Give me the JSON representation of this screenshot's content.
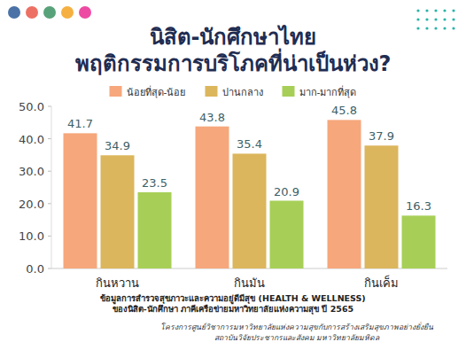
{
  "chart_data": {
    "type": "bar",
    "title": "นิสิต-นักศึกษาไทย",
    "subtitle": "พฤติกรรมการบริโภคที่น่าเป็นห่วง?",
    "categories": [
      "กินหวาน",
      "กินมัน",
      "กินเค็ม"
    ],
    "series": [
      {
        "name": "น้อยที่สุด-น้อย",
        "color": "#f6a77c",
        "values": [
          41.7,
          43.8,
          45.8
        ]
      },
      {
        "name": "ปานกลาง",
        "color": "#dcb65c",
        "values": [
          34.9,
          35.4,
          37.9
        ]
      },
      {
        "name": "มาก-มากที่สุด",
        "color": "#a7cf57",
        "values": [
          23.5,
          20.9,
          16.3
        ]
      }
    ],
    "ylim": [
      0,
      50
    ],
    "yticks": [
      {
        "value": 0,
        "label": "0.0"
      },
      {
        "value": 10,
        "label": "10.0"
      },
      {
        "value": 20,
        "label": "20.0"
      },
      {
        "value": 30,
        "label": "30.0"
      },
      {
        "value": 40,
        "label": "40.0"
      },
      {
        "value": 50,
        "label": "50.0"
      }
    ],
    "grid": false,
    "legend": "top",
    "data_labels": true,
    "annotations": [
      "ข้อมูลการสำรวจสุขภาวะและความอยู่ดีมีสุข (HEALTH & WELLNESS)",
      "ของนิสิต-นักศึกษา ภาคีเครือข่ายมหาวิทยาลัยแห่งความสุข ปี 2565",
      "โครงการศูนย์วิชาการมหาวิทยาลัยแห่งความสุขกับการสร้างเสริมสุขภาพอย่างยั่งยืน",
      "สถาบันวิจัยประชากรและสังคม มหาวิทยาลัยมหิดล"
    ]
  }
}
